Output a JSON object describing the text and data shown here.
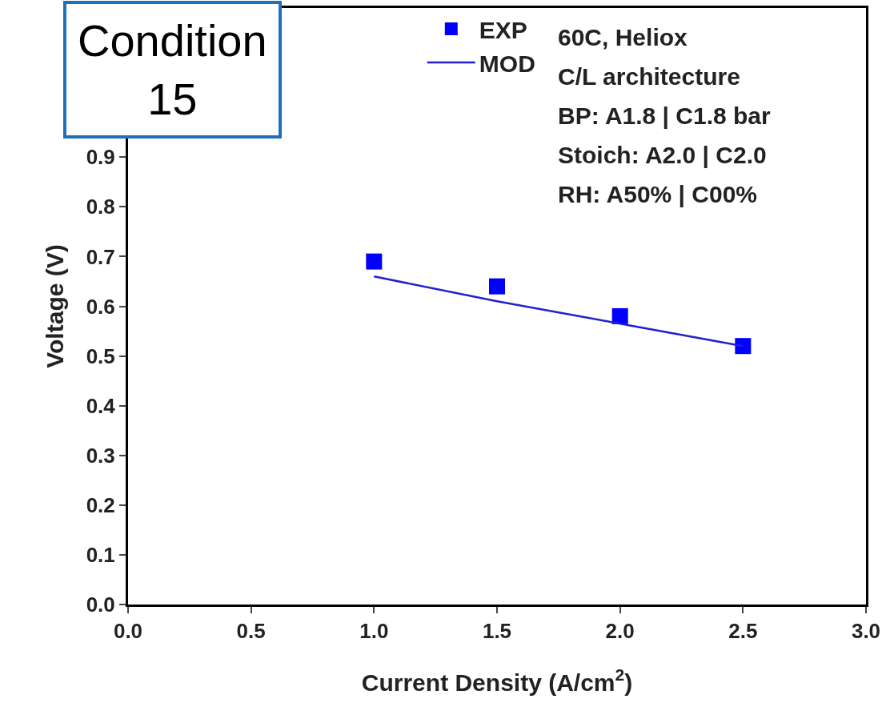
{
  "chart_data": {
    "type": "scatter",
    "xlabel": "Current Density (A/cm$^{2}$)",
    "ylabel": "Voltage (V)",
    "x": [
      1.0,
      1.5,
      2.0,
      2.5
    ],
    "series": [
      {
        "name": "EXP",
        "type": "scatter",
        "color": "#0000ff",
        "marker": "square",
        "values": [
          0.69,
          0.64,
          0.58,
          0.52
        ]
      },
      {
        "name": "MOD",
        "type": "line",
        "color": "#2020d0",
        "marker": "none",
        "line_style": "solid",
        "values": [
          0.66,
          0.61,
          0.565,
          0.52
        ]
      }
    ],
    "xlim": [
      0,
      3
    ],
    "xticks": [
      {
        "value": 0,
        "label": "0.0"
      },
      0.5,
      {
        "value": 1,
        "label": "1.0"
      },
      1.5,
      {
        "value": 2,
        "label": "2.0"
      },
      2.5,
      {
        "value": 3,
        "label": "3.0"
      }
    ],
    "ylim": [
      0,
      1.2
    ],
    "yticks": [
      {
        "value": 0,
        "label": "0.0"
      },
      0.1,
      0.2,
      0.3,
      0.4,
      0.5,
      0.6,
      0.7,
      0.8,
      0.9
    ],
    "grid": false,
    "legend": "top right",
    "annotations": [
      "Condition\n15",
      "60C, Heliox",
      "C/L architecture",
      "BP: A1.8 | C1.8 bar",
      "Stoich: A2.0 | C2.0",
      "RH: A50% | C00%"
    ]
  }
}
